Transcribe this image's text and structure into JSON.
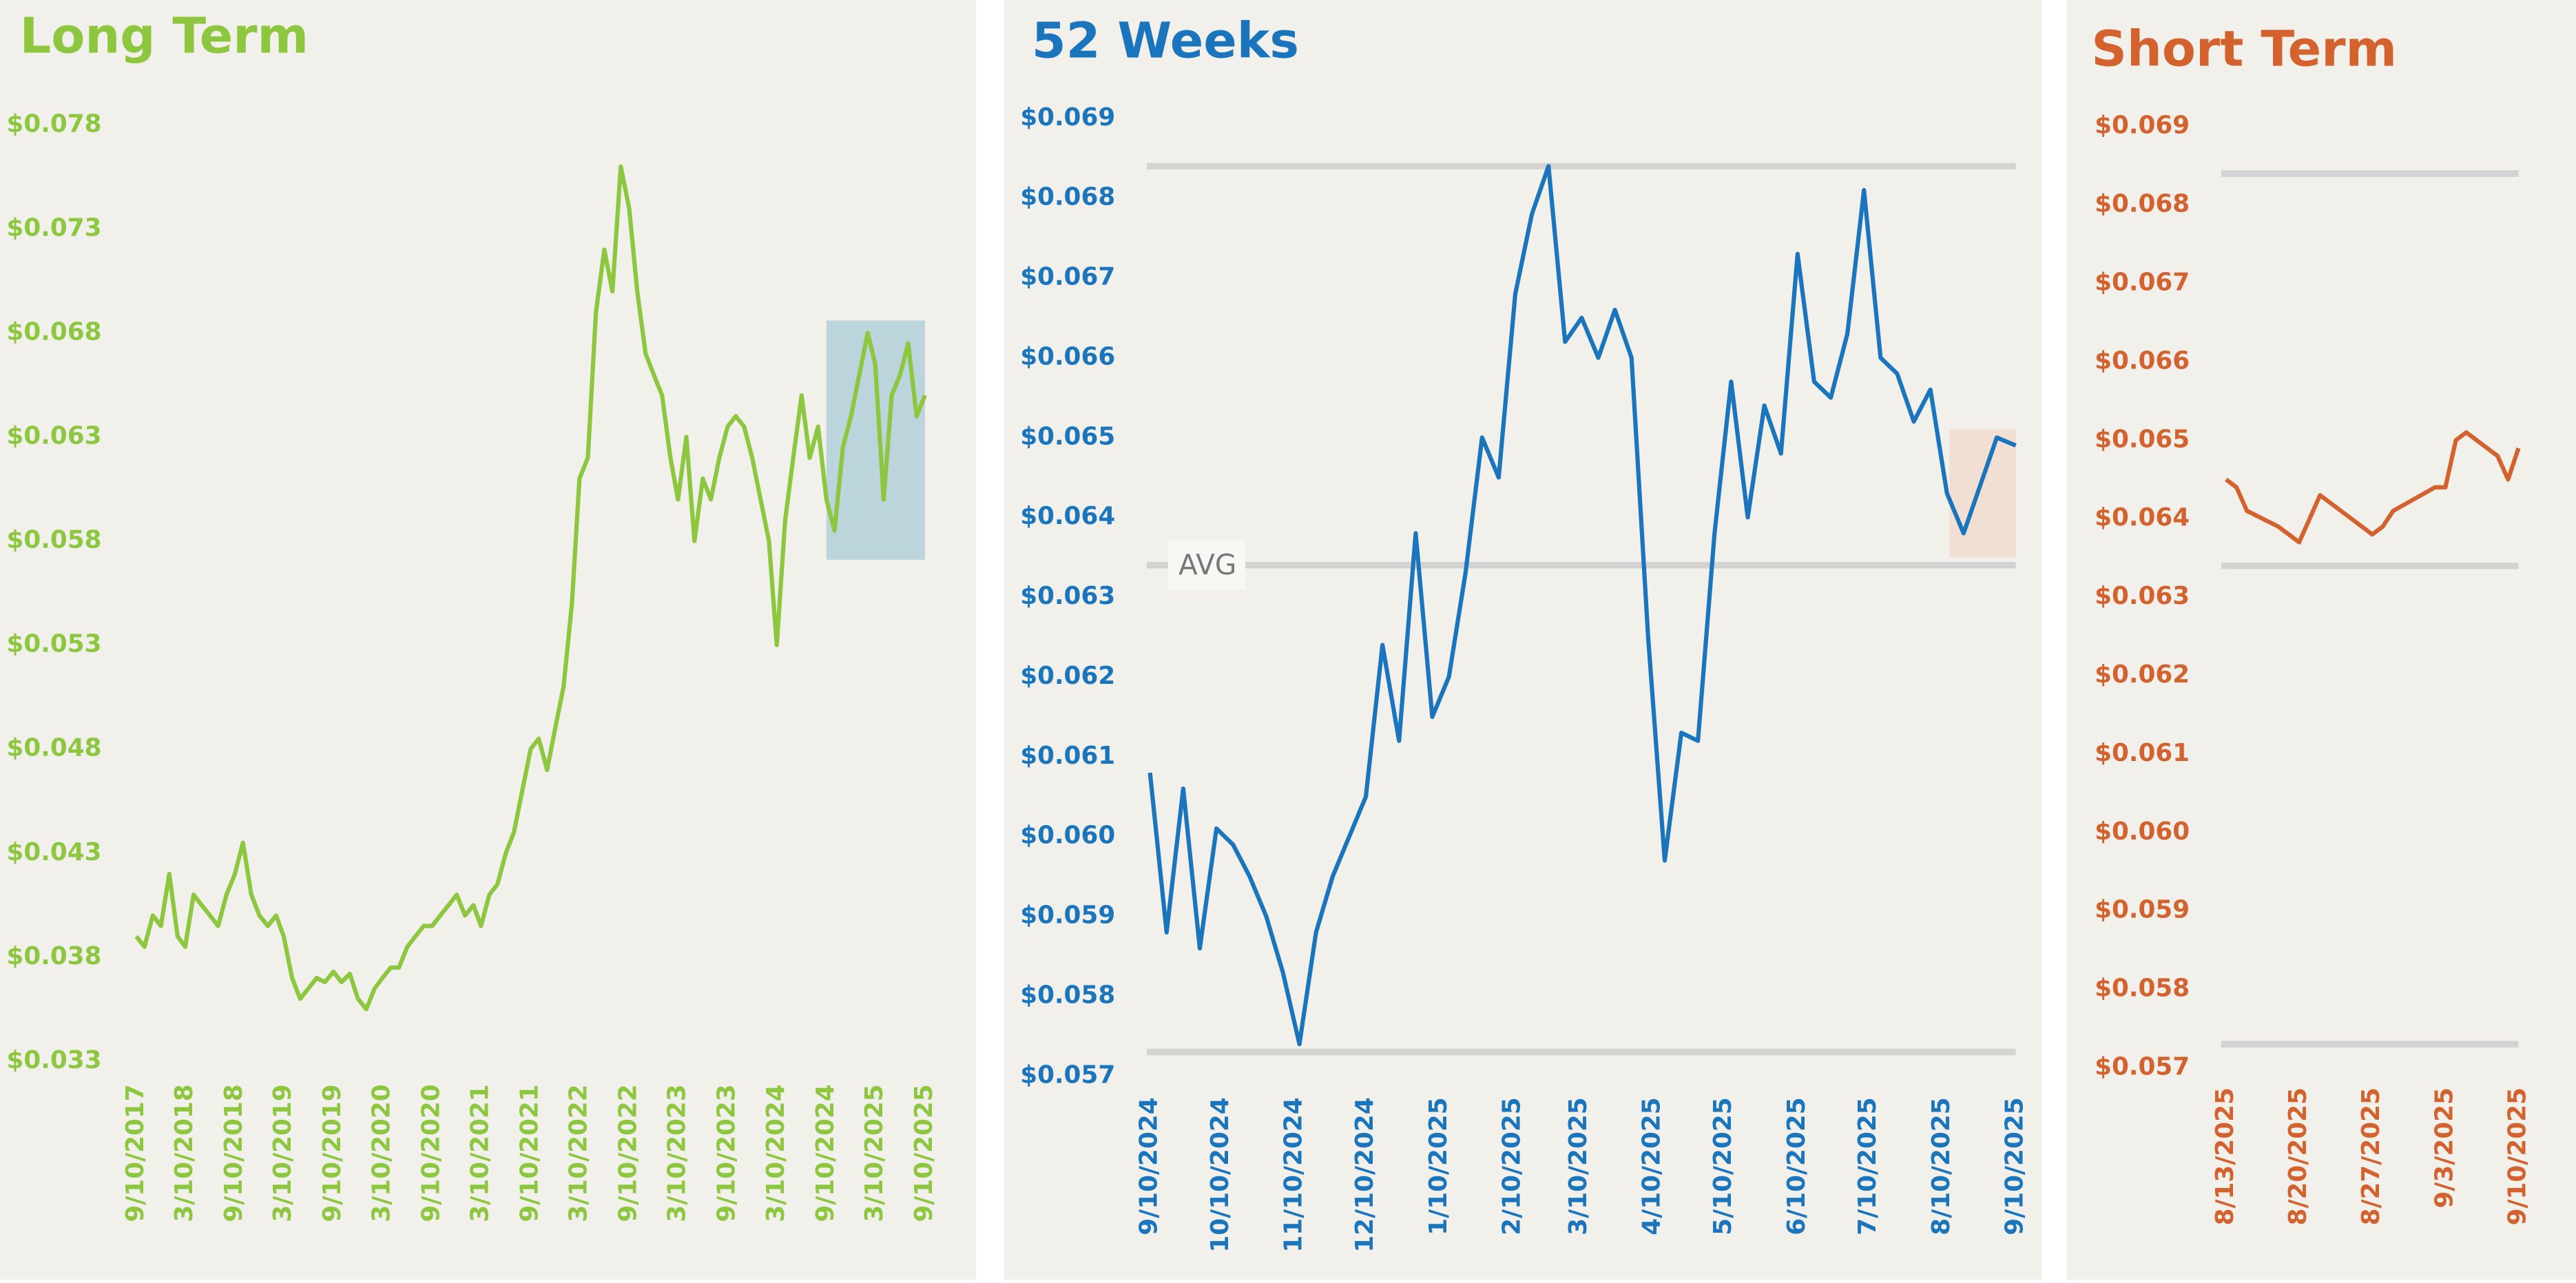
{
  "chart_data": [
    {
      "type": "line",
      "title": "Long Term",
      "color": "#8dc63f",
      "x": [
        "9/10/2017",
        "10/10/2017",
        "11/10/2017",
        "12/10/2017",
        "1/10/2018",
        "2/10/2018",
        "3/10/2018",
        "4/10/2018",
        "5/10/2018",
        "6/10/2018",
        "7/10/2018",
        "8/10/2018",
        "9/10/2018",
        "10/10/2018",
        "11/10/2018",
        "12/10/2018",
        "1/10/2019",
        "2/10/2019",
        "3/10/2019",
        "4/10/2019",
        "5/10/2019",
        "6/10/2019",
        "7/10/2019",
        "8/10/2019",
        "9/10/2019",
        "10/10/2019",
        "11/10/2019",
        "12/10/2019",
        "1/10/2020",
        "2/10/2020",
        "3/10/2020",
        "4/10/2020",
        "5/10/2020",
        "6/10/2020",
        "7/10/2020",
        "8/10/2020",
        "9/10/2020",
        "10/10/2020",
        "11/10/2020",
        "12/10/2020",
        "1/10/2021",
        "2/10/2021",
        "3/10/2021",
        "4/10/2021",
        "5/10/2021",
        "6/10/2021",
        "7/10/2021",
        "8/10/2021",
        "9/10/2021",
        "10/10/2021",
        "11/10/2021",
        "12/10/2021",
        "1/10/2022",
        "2/10/2022",
        "3/10/2022",
        "4/10/2022",
        "5/10/2022",
        "6/10/2022",
        "7/10/2022",
        "8/10/2022",
        "9/10/2022",
        "10/10/2022",
        "11/10/2022",
        "12/10/2022",
        "1/10/2023",
        "2/10/2023",
        "3/10/2023",
        "4/10/2023",
        "5/10/2023",
        "6/10/2023",
        "7/10/2023",
        "8/10/2023",
        "9/10/2023",
        "10/10/2023",
        "11/10/2023",
        "12/10/2023",
        "1/10/2024",
        "2/10/2024",
        "3/10/2024",
        "4/10/2024",
        "5/10/2024",
        "6/10/2024",
        "7/10/2024",
        "8/10/2024",
        "9/10/2024",
        "10/10/2024",
        "11/10/2024",
        "12/10/2024",
        "1/10/2025",
        "2/10/2025",
        "3/10/2025",
        "4/10/2025",
        "5/10/2025",
        "6/10/2025",
        "7/10/2025",
        "8/10/2025",
        "9/10/2025"
      ],
      "values": [
        0.039,
        0.0385,
        0.04,
        0.0395,
        0.042,
        0.039,
        0.0385,
        0.041,
        0.0405,
        0.04,
        0.0395,
        0.041,
        0.042,
        0.0435,
        0.041,
        0.04,
        0.0395,
        0.04,
        0.039,
        0.037,
        0.036,
        0.0365,
        0.037,
        0.0368,
        0.0373,
        0.0368,
        0.0372,
        0.036,
        0.0355,
        0.0365,
        0.037,
        0.0375,
        0.0375,
        0.0385,
        0.039,
        0.0395,
        0.0395,
        0.04,
        0.0405,
        0.041,
        0.04,
        0.0405,
        0.0395,
        0.041,
        0.0415,
        0.043,
        0.044,
        0.046,
        0.048,
        0.0485,
        0.047,
        0.049,
        0.051,
        0.055,
        0.061,
        0.062,
        0.069,
        0.072,
        0.07,
        0.076,
        0.074,
        0.07,
        0.067,
        0.066,
        0.065,
        0.062,
        0.06,
        0.063,
        0.058,
        0.061,
        0.06,
        0.062,
        0.0635,
        0.064,
        0.0635,
        0.062,
        0.06,
        0.058,
        0.053,
        0.059,
        0.062,
        0.065,
        0.062,
        0.0635,
        0.06,
        0.0585,
        0.0625,
        0.064,
        0.066,
        0.068,
        0.0665,
        0.06,
        0.065,
        0.066,
        0.0675,
        0.064,
        0.065
      ],
      "xlim": [
        "9/10/2017",
        "9/10/2025"
      ],
      "xticks": [
        "9/10/2017",
        "3/10/2018",
        "9/10/2018",
        "3/10/2019",
        "9/10/2019",
        "3/10/2020",
        "9/10/2020",
        "3/10/2021",
        "9/10/2021",
        "3/10/2022",
        "9/10/2022",
        "3/10/2023",
        "9/10/2023",
        "3/10/2024",
        "9/10/2024",
        "3/10/2025",
        "9/10/2025"
      ],
      "ylim": [
        0.033,
        0.078
      ],
      "yticks": [
        {
          "value": 0.078,
          "label": "$0.078"
        },
        {
          "value": 0.073,
          "label": "$0.073"
        },
        {
          "value": 0.068,
          "label": "$0.068"
        },
        {
          "value": 0.063,
          "label": "$0.063"
        },
        {
          "value": 0.058,
          "label": "$0.058"
        },
        {
          "value": 0.053,
          "label": "$0.053"
        },
        {
          "value": 0.048,
          "label": "$0.048"
        },
        {
          "value": 0.043,
          "label": "$0.043"
        },
        {
          "value": 0.038,
          "label": "$0.038"
        },
        {
          "value": 0.033,
          "label": "$0.033"
        }
      ],
      "highlight": {
        "x": [
          "9/10/2024",
          "9/10/2025"
        ],
        "y": [
          0.0571,
          0.0686
        ],
        "color": "#a9cbd6"
      }
    },
    {
      "type": "line",
      "title": "52 Weeks",
      "color": "#1a75bc",
      "x": [
        "9/10/2024",
        "9/17/2024",
        "9/24/2024",
        "10/1/2024",
        "10/8/2024",
        "10/15/2024",
        "10/22/2024",
        "10/29/2024",
        "11/5/2024",
        "11/12/2024",
        "11/19/2024",
        "11/26/2024",
        "12/3/2024",
        "12/10/2024",
        "12/17/2024",
        "12/24/2024",
        "12/31/2024",
        "1/7/2025",
        "1/14/2025",
        "1/21/2025",
        "1/28/2025",
        "2/4/2025",
        "2/11/2025",
        "2/18/2025",
        "2/25/2025",
        "3/4/2025",
        "3/11/2025",
        "3/18/2025",
        "3/25/2025",
        "4/1/2025",
        "4/8/2025",
        "4/15/2025",
        "4/22/2025",
        "4/29/2025",
        "5/6/2025",
        "5/13/2025",
        "5/20/2025",
        "5/27/2025",
        "6/3/2025",
        "6/10/2025",
        "6/17/2025",
        "6/24/2025",
        "7/1/2025",
        "7/8/2025",
        "7/15/2025",
        "7/22/2025",
        "7/29/2025",
        "8/5/2025",
        "8/12/2025",
        "8/19/2025",
        "8/26/2025",
        "9/2/2025",
        "9/10/2025"
      ],
      "values": [
        0.0608,
        0.0588,
        0.0606,
        0.0586,
        0.0601,
        0.0599,
        0.0595,
        0.059,
        0.0583,
        0.0574,
        0.0588,
        0.0595,
        0.06,
        0.0605,
        0.0624,
        0.0612,
        0.0638,
        0.0615,
        0.062,
        0.0633,
        0.065,
        0.0645,
        0.0668,
        0.0678,
        0.0684,
        0.0662,
        0.0665,
        0.066,
        0.0666,
        0.066,
        0.0625,
        0.0597,
        0.0613,
        0.0612,
        0.0638,
        0.0657,
        0.064,
        0.0654,
        0.0648,
        0.0673,
        0.0657,
        0.0655,
        0.0663,
        0.0681,
        0.066,
        0.0658,
        0.0652,
        0.0656,
        0.0643,
        0.0638,
        0.0644,
        0.065,
        0.0649
      ],
      "xlim": [
        "9/10/2024",
        "9/10/2025"
      ],
      "xticks": [
        "9/10/2024",
        "10/10/2024",
        "11/10/2024",
        "12/10/2024",
        "1/10/2025",
        "2/10/2025",
        "3/10/2025",
        "4/10/2025",
        "5/10/2025",
        "6/10/2025",
        "7/10/2025",
        "8/10/2025",
        "9/10/2025"
      ],
      "ylim": [
        0.057,
        0.069
      ],
      "yticks": [
        {
          "value": 0.069,
          "label": "$0.069"
        },
        {
          "value": 0.068,
          "label": "$0.068"
        },
        {
          "value": 0.067,
          "label": "$0.067"
        },
        {
          "value": 0.066,
          "label": "$0.066"
        },
        {
          "value": 0.065,
          "label": "$0.065"
        },
        {
          "value": 0.064,
          "label": "$0.064"
        },
        {
          "value": 0.063,
          "label": "$0.063"
        },
        {
          "value": 0.062,
          "label": "$0.062"
        },
        {
          "value": 0.061,
          "label": "$0.061"
        },
        {
          "value": 0.06,
          "label": "$0.060"
        },
        {
          "value": 0.059,
          "label": "$0.059"
        },
        {
          "value": 0.058,
          "label": "$0.058"
        },
        {
          "value": 0.057,
          "label": "$0.057"
        }
      ],
      "lines": [
        {
          "value": 0.0684
        },
        {
          "value": 0.0634,
          "label": "AVG"
        },
        {
          "value": 0.0573
        }
      ],
      "highlight": {
        "x": [
          "8/13/2025",
          "9/10/2025"
        ],
        "y": [
          0.0635,
          0.0651
        ],
        "color": "#f1d9cc"
      }
    },
    {
      "type": "line",
      "title": "Short Term",
      "color": "#d4622f",
      "x": [
        "8/13/2025",
        "8/14/2025",
        "8/15/2025",
        "8/18/2025",
        "8/19/2025",
        "8/20/2025",
        "8/21/2025",
        "8/22/2025",
        "8/25/2025",
        "8/26/2025",
        "8/27/2025",
        "8/28/2025",
        "8/29/2025",
        "9/2/2025",
        "9/3/2025",
        "9/4/2025",
        "9/5/2025",
        "9/8/2025",
        "9/9/2025",
        "9/10/2025"
      ],
      "values": [
        0.0645,
        0.0644,
        0.0641,
        0.0639,
        0.0638,
        0.0637,
        0.064,
        0.0643,
        0.064,
        0.0639,
        0.0638,
        0.0639,
        0.0641,
        0.0644,
        0.0644,
        0.065,
        0.0651,
        0.0648,
        0.0645,
        0.0649
      ],
      "xlim": [
        "8/13/2025",
        "9/10/2025"
      ],
      "xticks": [
        "8/13/2025",
        "8/20/2025",
        "8/27/2025",
        "9/3/2025",
        "9/10/2025"
      ],
      "ylim": [
        0.057,
        0.069
      ],
      "yticks": [
        {
          "value": 0.069,
          "label": "$0.069"
        },
        {
          "value": 0.068,
          "label": "$0.068"
        },
        {
          "value": 0.067,
          "label": "$0.067"
        },
        {
          "value": 0.066,
          "label": "$0.066"
        },
        {
          "value": 0.065,
          "label": "$0.065"
        },
        {
          "value": 0.064,
          "label": "$0.064"
        },
        {
          "value": 0.063,
          "label": "$0.063"
        },
        {
          "value": 0.062,
          "label": "$0.062"
        },
        {
          "value": 0.061,
          "label": "$0.061"
        },
        {
          "value": 0.06,
          "label": "$0.060"
        },
        {
          "value": 0.059,
          "label": "$0.059"
        },
        {
          "value": 0.058,
          "label": "$0.058"
        },
        {
          "value": 0.057,
          "label": "$0.057"
        }
      ],
      "lines": [
        {
          "value": 0.0684
        },
        {
          "value": 0.0634
        },
        {
          "value": 0.0573
        }
      ]
    }
  ]
}
